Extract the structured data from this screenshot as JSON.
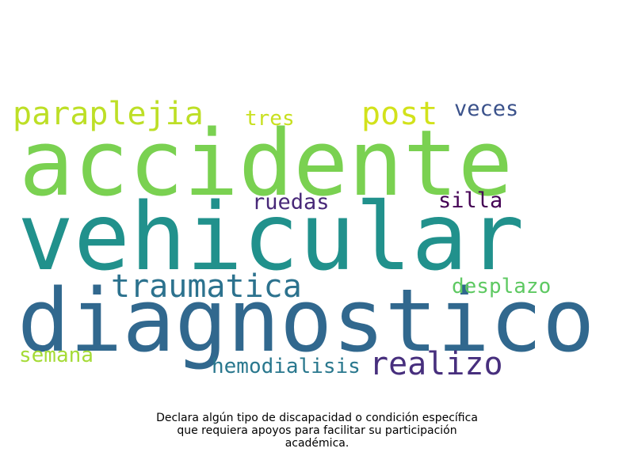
{
  "wordcloud": {
    "words": [
      {
        "text": "accidente",
        "color": "#7ad151"
      },
      {
        "text": "vehicular",
        "color": "#21918c"
      },
      {
        "text": "diagnostico",
        "color": "#31688e"
      },
      {
        "text": "paraplejia",
        "color": "#bddf26"
      },
      {
        "text": "post",
        "color": "#d2e21b"
      },
      {
        "text": "veces",
        "color": "#3b528b"
      },
      {
        "text": "tres",
        "color": "#c8e020"
      },
      {
        "text": "ruedas",
        "color": "#482878"
      },
      {
        "text": "silla",
        "color": "#440154"
      },
      {
        "text": "traumatica",
        "color": "#2c728e"
      },
      {
        "text": "desplazo",
        "color": "#5ec962"
      },
      {
        "text": "semana",
        "color": "#a5db36"
      },
      {
        "text": "hemodialisis",
        "color": "#2a788e"
      },
      {
        "text": "realizo",
        "color": "#472f7d"
      }
    ]
  },
  "caption": {
    "line1": "Declara algún tipo de discapacidad o condición específica",
    "line2": "que requiera apoyos para facilitar su participación",
    "line3": "académica."
  }
}
